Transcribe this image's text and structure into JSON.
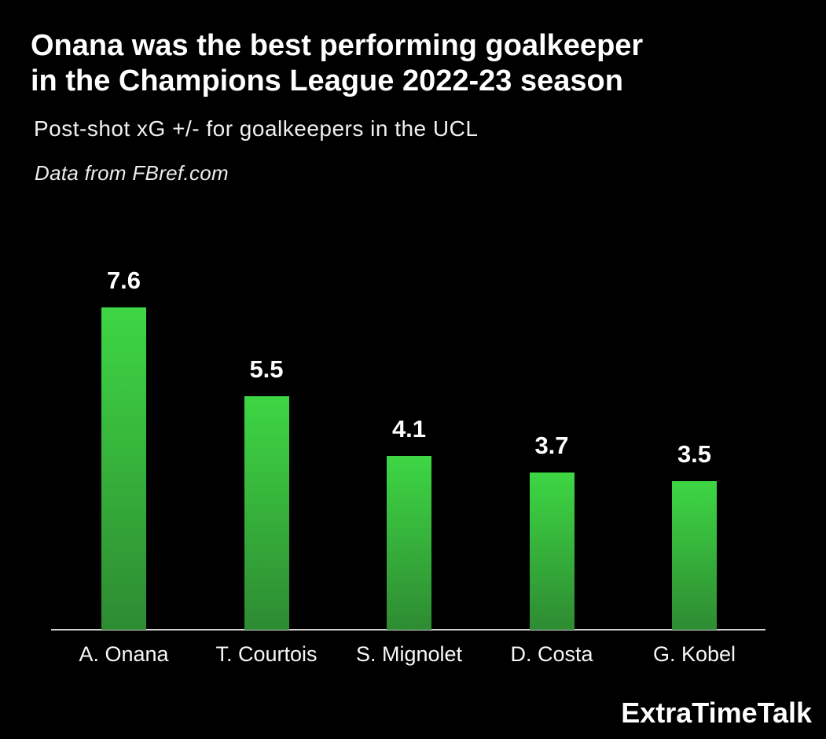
{
  "header": {
    "title_line1": "Onana was the best performing goalkeeper",
    "title_line2": "in the Champions League 2022-23 season",
    "subtitle": "Post-shot xG +/- for goalkeepers in the UCL",
    "source_note": "Data from FBref.com"
  },
  "footer": {
    "brand": "ExtraTimeTalk"
  },
  "colors": {
    "background": "#000000",
    "bar_top": "#3ed644",
    "bar_bottom": "#2e8b32",
    "axis_line": "#d2d2d2",
    "text": "#ffffff"
  },
  "chart_data": {
    "type": "bar",
    "title": "Onana was the best performing goalkeeper in the Champions League 2022-23 season",
    "subtitle": "Post-shot xG +/- for goalkeepers in the UCL",
    "source": "Data from FBref.com",
    "categories": [
      "A. Onana",
      "T. Courtois",
      "S. Mignolet",
      "D. Costa",
      "G. Kobel"
    ],
    "values": [
      7.6,
      5.5,
      4.1,
      3.7,
      3.5
    ],
    "value_labels": [
      "7.6",
      "5.5",
      "4.1",
      "3.7",
      "3.5"
    ],
    "xlabel": "",
    "ylabel": "",
    "ylim": [
      0,
      7.6
    ],
    "grid": false,
    "legend": false,
    "bar_color_top": "#3ed644",
    "bar_color_bottom": "#2e8b32"
  }
}
